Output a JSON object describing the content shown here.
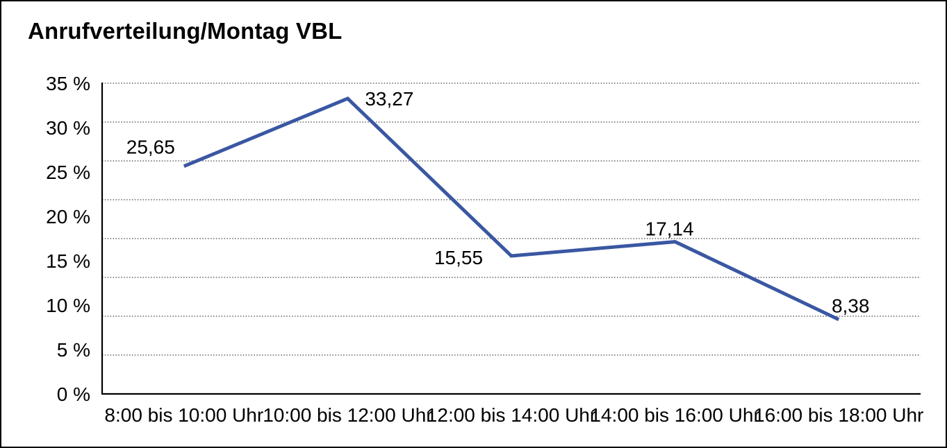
{
  "window": {
    "background": "#ffffff",
    "border_color": "#000000"
  },
  "chart_data": {
    "type": "line",
    "title": "Anrufverteilung/Montag VBL",
    "categories": [
      "8:00 bis 10:00 Uhr",
      "10:00 bis 12:00 Uhr",
      "12:00 bis 14:00 Uhr",
      "14:00 bis 16:00 Uhr",
      "16:00 bis 18:00 Uhr"
    ],
    "series": [
      {
        "name": "Anrufverteilung Montag VBL",
        "values": [
          25.65,
          33.27,
          15.55,
          17.14,
          8.38
        ],
        "point_labels": [
          "25,65",
          "33,27",
          "15,55",
          "17,14",
          "8,38"
        ],
        "color": "#3A57A2"
      }
    ],
    "xlabel": "",
    "ylabel": "",
    "ylim": [
      0,
      35
    ],
    "ytick_labels": [
      "35 %",
      "30 %",
      "25 %",
      "20 %",
      "15 %",
      "10 %",
      "5 %",
      "0 %"
    ],
    "grid": "horizontal-dotted",
    "gridline_count_intervals": 8,
    "legend": "none",
    "axis_color": "#000000",
    "gridline_color": "#404040",
    "text_color": "#000000"
  }
}
